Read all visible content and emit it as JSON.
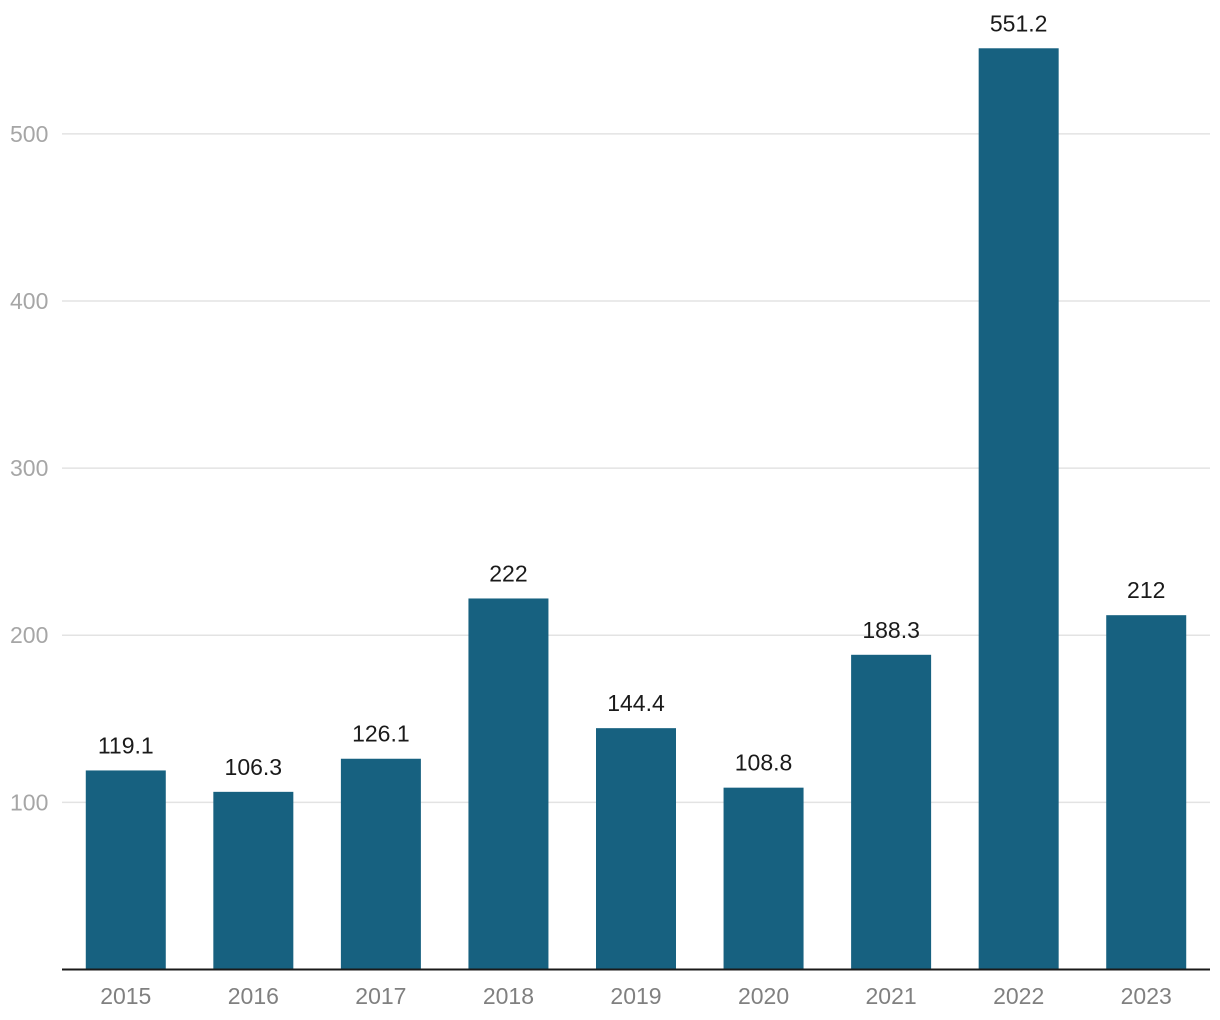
{
  "chart_data": {
    "type": "bar",
    "categories": [
      "2015",
      "2016",
      "2017",
      "2018",
      "2019",
      "2020",
      "2021",
      "2022",
      "2023"
    ],
    "values": [
      119.1,
      106.3,
      126.1,
      222,
      144.4,
      108.8,
      188.3,
      551.2,
      212
    ],
    "value_labels": [
      "119.1",
      "106.3",
      "126.1",
      "222",
      "144.4",
      "108.8",
      "188.3",
      "551.2",
      "212"
    ],
    "yticks": [
      100,
      200,
      300,
      400,
      500
    ],
    "ylim": [
      0,
      600
    ],
    "grid": true,
    "bar_color": "#176180",
    "title": "",
    "xlabel": "",
    "ylabel": ""
  }
}
